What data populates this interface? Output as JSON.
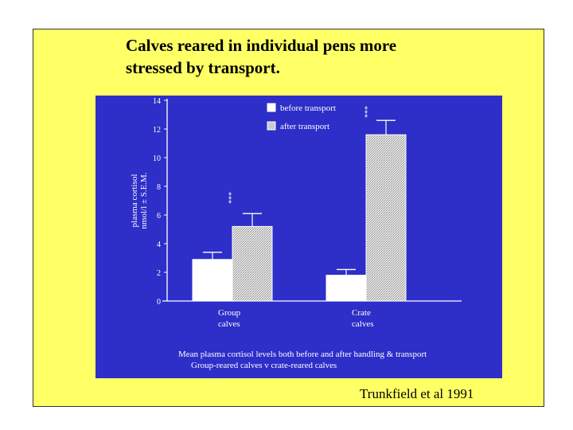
{
  "slide": {
    "title_line1": "Calves reared in individual pens more",
    "title_line2": "stressed by transport.",
    "citation": "Trunkfield et al 1991",
    "background_color": "#ffff66",
    "panel_color": "#2e2ec8"
  },
  "chart_data": {
    "type": "bar",
    "ylabel_line1": "plasma cortisol",
    "ylabel_line2": "nmol/l ± S.E.M.",
    "ylim": [
      0,
      14
    ],
    "yticks": [
      0,
      2,
      4,
      6,
      8,
      10,
      12,
      14
    ],
    "categories": [
      {
        "line1": "Group",
        "line2": "calves"
      },
      {
        "line1": "Crate",
        "line2": "calves"
      }
    ],
    "series": [
      {
        "name": "before transport",
        "values": [
          2.9,
          1.8
        ],
        "errors": [
          0.5,
          0.4
        ],
        "pattern": "open"
      },
      {
        "name": "after transport",
        "values": [
          5.2,
          11.6
        ],
        "errors": [
          0.9,
          1.0
        ],
        "pattern": "hatched"
      }
    ],
    "significance": [
      {
        "label": "***",
        "category": 0
      },
      {
        "label": "***",
        "category": 1
      }
    ],
    "caption_line1": "Mean plasma cortisol levels both before and after handling & transport",
    "caption_line2": "Group-reared calves v crate-reared calves"
  }
}
